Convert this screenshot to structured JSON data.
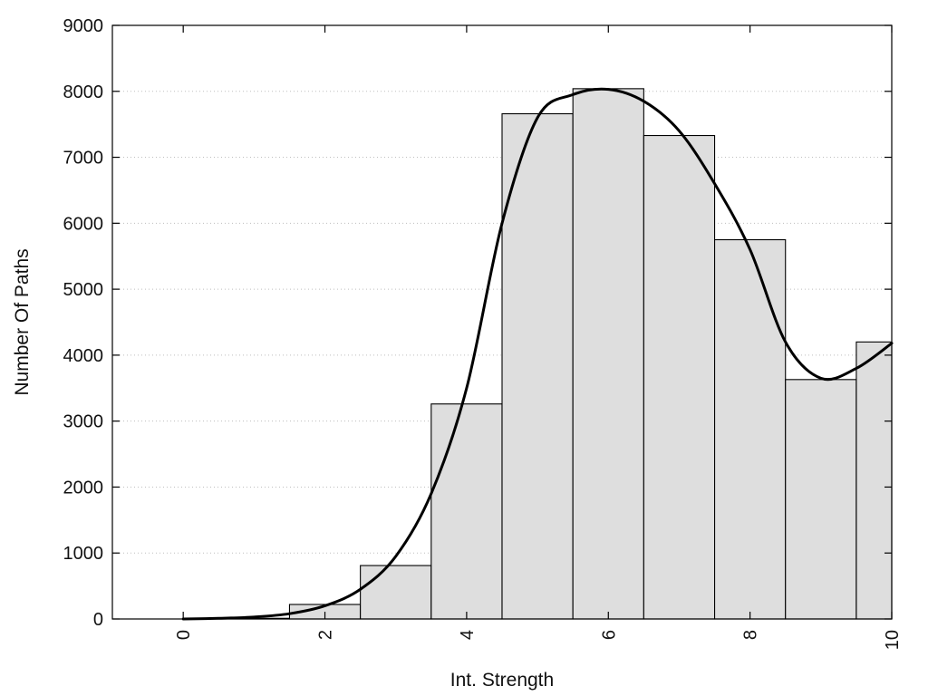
{
  "chart_data": {
    "type": "bar",
    "title": "",
    "xlabel": "Int. Strength",
    "ylabel": "Number Of Paths",
    "x": [
      0,
      1,
      2,
      3,
      4,
      5,
      6,
      7,
      8,
      9,
      10
    ],
    "values": [
      0,
      10,
      220,
      810,
      3260,
      7660,
      8040,
      7330,
      5750,
      3630,
      4200
    ],
    "curve": {
      "x": [
        0,
        0.5,
        1,
        1.5,
        2,
        2.5,
        3,
        3.5,
        4,
        4.5,
        5,
        5.5,
        6,
        6.5,
        7,
        7.5,
        8,
        8.5,
        9,
        9.5,
        10
      ],
      "y": [
        0,
        10,
        30,
        80,
        200,
        450,
        950,
        1900,
        3500,
        6000,
        7600,
        7950,
        8030,
        7850,
        7400,
        6600,
        5600,
        4200,
        3650,
        3800,
        4180
      ]
    },
    "xlim": [
      -1,
      10
    ],
    "ylim": [
      0,
      9000
    ],
    "x_ticks": [
      "0",
      "2",
      "4",
      "6",
      "8",
      "10"
    ],
    "x_tick_values": [
      0,
      2,
      4,
      6,
      8,
      10
    ],
    "y_ticks": [
      "0",
      "1000",
      "2000",
      "3000",
      "4000",
      "5000",
      "6000",
      "7000",
      "8000",
      "9000"
    ],
    "y_tick_values": [
      0,
      1000,
      2000,
      3000,
      4000,
      5000,
      6000,
      7000,
      8000,
      9000
    ],
    "grid": "horizontal-dotted",
    "legend": "none",
    "bar_color": "#dedede",
    "line_color": "#000000"
  }
}
